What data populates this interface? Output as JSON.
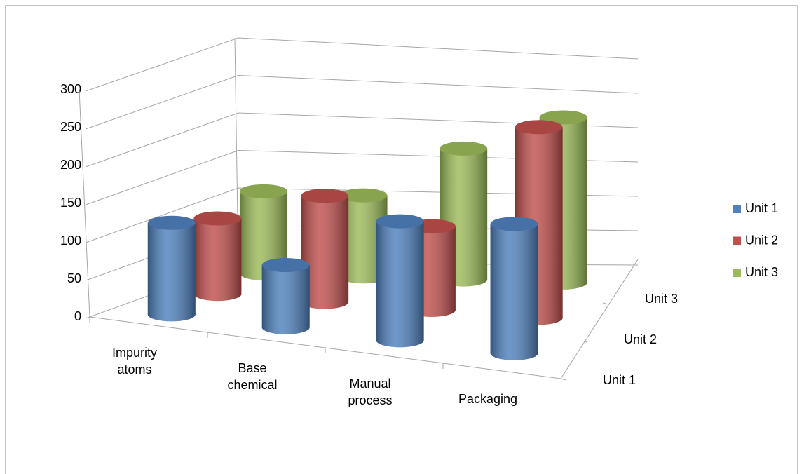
{
  "chart_data": {
    "type": "cylinder3d",
    "categories": [
      "Impurity atoms",
      "Base chemical",
      "Manual process",
      "Packaging"
    ],
    "series": [
      {
        "name": "Unit 1",
        "color": "#4f81bd",
        "values": [
          120,
          80,
          150,
          160
        ]
      },
      {
        "name": "Unit 2",
        "color": "#c0504d",
        "values": [
          100,
          140,
          110,
          250
        ]
      },
      {
        "name": "Unit 3",
        "color": "#9bbb59",
        "values": [
          110,
          110,
          180,
          230
        ]
      }
    ],
    "ylim": [
      0,
      300
    ],
    "yticks": [
      0,
      50,
      100,
      150,
      200,
      250,
      300
    ],
    "grid": true,
    "legend": "right"
  }
}
